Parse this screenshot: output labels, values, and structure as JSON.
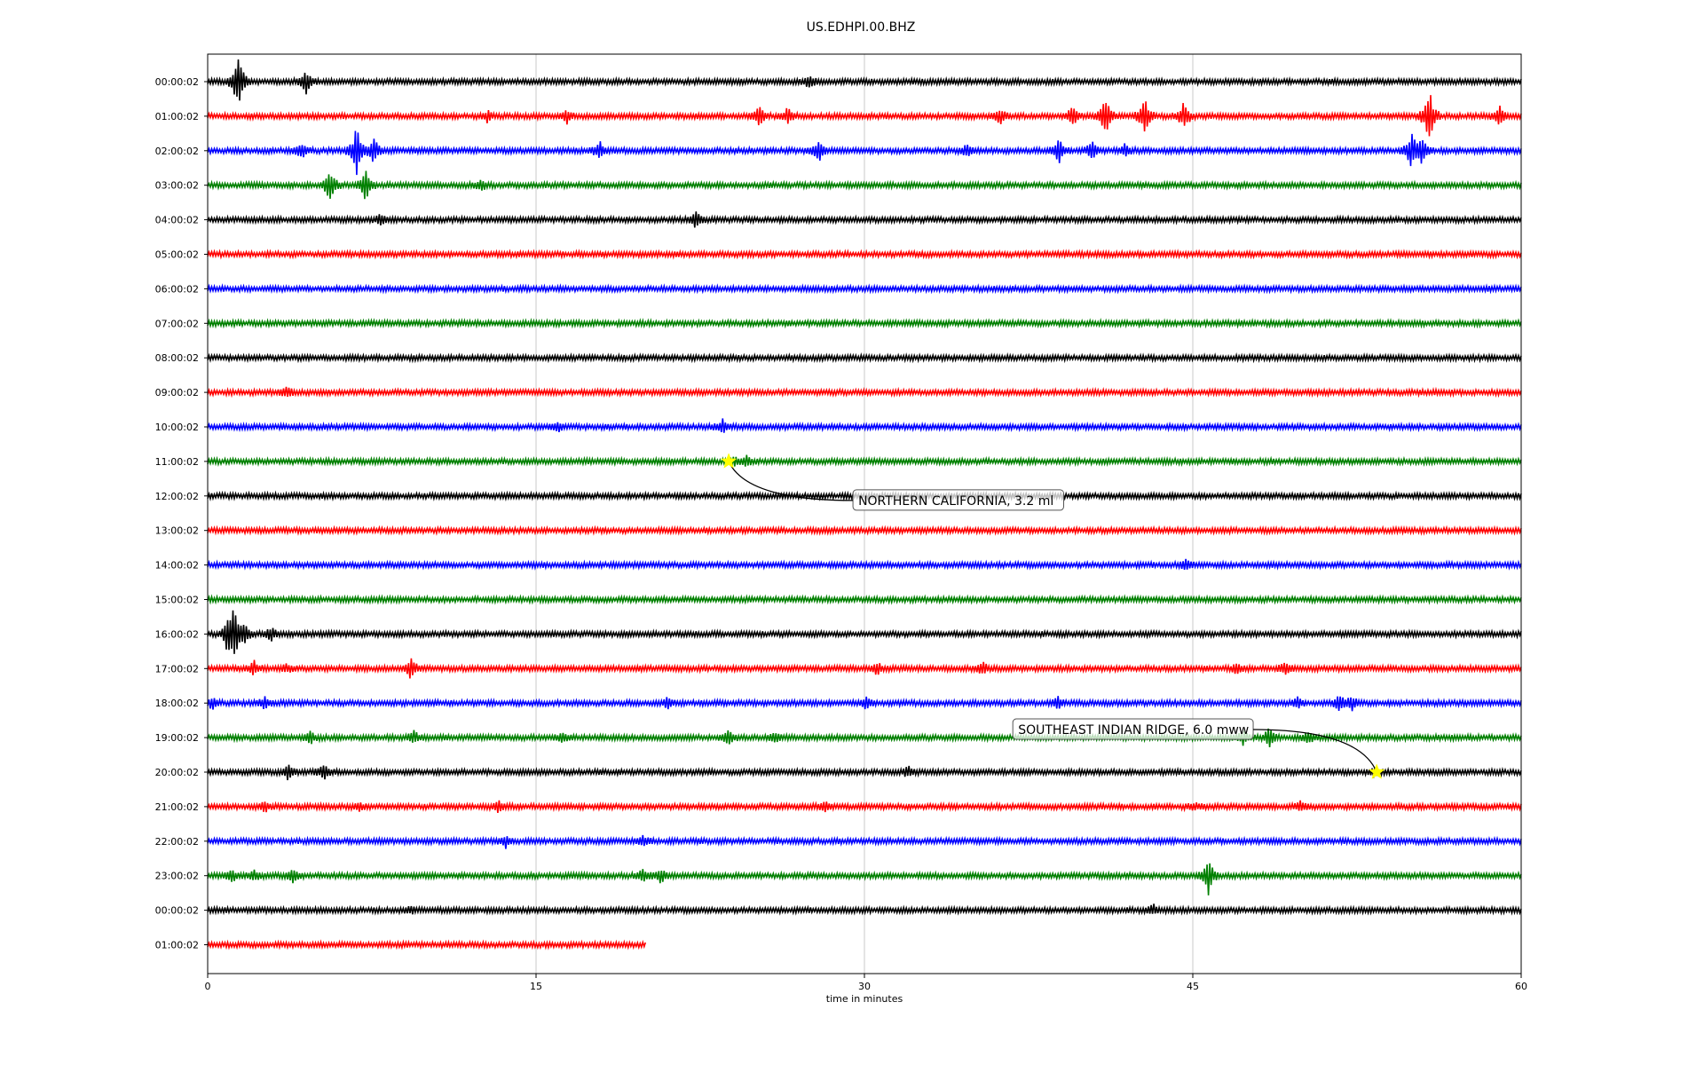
{
  "chart_data": {
    "type": "line",
    "title": "US.EDHPI.00.BHZ",
    "xlabel": "time in minutes",
    "ylabel": "",
    "xlim": [
      0,
      60
    ],
    "x_ticks": [
      "0",
      "15",
      "30",
      "45",
      "60"
    ],
    "x_tick_values": [
      0,
      15,
      30,
      45,
      60
    ],
    "grid": "vertical",
    "colors": [
      "#000000",
      "#ff0000",
      "#0000ff",
      "#008000"
    ],
    "rows": [
      {
        "label": "00:00:02",
        "color": "#000000",
        "end_minute": 60,
        "events": [
          [
            1.4,
            3.4
          ],
          [
            4.5,
            1.2
          ],
          [
            27.5,
            0.8
          ]
        ]
      },
      {
        "label": "01:00:02",
        "color": "#ff0000",
        "end_minute": 60,
        "events": [
          [
            12.8,
            0.6
          ],
          [
            16.4,
            0.7
          ],
          [
            25.2,
            1.2
          ],
          [
            26.5,
            0.9
          ],
          [
            36.2,
            0.9
          ],
          [
            39.5,
            1.0
          ],
          [
            41.0,
            2.3
          ],
          [
            42.8,
            2.4
          ],
          [
            44.6,
            1.6
          ],
          [
            55.8,
            3.4
          ],
          [
            59.0,
            1.0
          ]
        ]
      },
      {
        "label": "02:00:02",
        "color": "#0000ff",
        "end_minute": 60,
        "events": [
          [
            4.3,
            0.8
          ],
          [
            6.8,
            2.8
          ],
          [
            7.6,
            1.4
          ],
          [
            17.9,
            0.9
          ],
          [
            27.9,
            1.1
          ],
          [
            34.7,
            0.6
          ],
          [
            38.9,
            1.3
          ],
          [
            40.4,
            1.0
          ],
          [
            41.9,
            0.7
          ],
          [
            55.0,
            2.1
          ],
          [
            55.5,
            1.4
          ]
        ]
      },
      {
        "label": "03:00:02",
        "color": "#008000",
        "end_minute": 60,
        "events": [
          [
            5.6,
            1.9
          ],
          [
            7.2,
            1.7
          ],
          [
            12.5,
            0.5
          ]
        ]
      },
      {
        "label": "04:00:02",
        "color": "#000000",
        "end_minute": 60,
        "events": [
          [
            7.9,
            0.5
          ],
          [
            22.3,
            0.8
          ]
        ]
      },
      {
        "label": "05:00:02",
        "color": "#ff0000",
        "end_minute": 60,
        "events": []
      },
      {
        "label": "06:00:02",
        "color": "#0000ff",
        "end_minute": 60,
        "events": []
      },
      {
        "label": "07:00:02",
        "color": "#008000",
        "end_minute": 60,
        "events": []
      },
      {
        "label": "08:00:02",
        "color": "#000000",
        "end_minute": 60,
        "events": []
      },
      {
        "label": "09:00:02",
        "color": "#ff0000",
        "end_minute": 60,
        "events": [
          [
            3.6,
            0.5
          ]
        ]
      },
      {
        "label": "10:00:02",
        "color": "#0000ff",
        "end_minute": 60,
        "events": [
          [
            16.0,
            0.4
          ],
          [
            23.5,
            0.8
          ]
        ]
      },
      {
        "label": "11:00:02",
        "color": "#008000",
        "end_minute": 60,
        "events": [
          [
            24.0,
            0.5
          ],
          [
            24.6,
            0.6
          ]
        ]
      },
      {
        "label": "12:00:02",
        "color": "#000000",
        "end_minute": 60,
        "events": []
      },
      {
        "label": "13:00:02",
        "color": "#ff0000",
        "end_minute": 60,
        "events": []
      },
      {
        "label": "14:00:02",
        "color": "#0000ff",
        "end_minute": 60,
        "events": [
          [
            44.7,
            0.5
          ]
        ]
      },
      {
        "label": "15:00:02",
        "color": "#008000",
        "end_minute": 60,
        "events": []
      },
      {
        "label": "16:00:02",
        "color": "#000000",
        "end_minute": 60,
        "events": [
          [
            0.9,
            1.3
          ],
          [
            1.2,
            3.3
          ],
          [
            1.7,
            1.1
          ],
          [
            2.9,
            0.8
          ]
        ]
      },
      {
        "label": "17:00:02",
        "color": "#ff0000",
        "end_minute": 60,
        "events": [
          [
            2.1,
            0.8
          ],
          [
            3.6,
            0.5
          ],
          [
            9.3,
            1.1
          ],
          [
            30.6,
            0.6
          ],
          [
            35.4,
            0.6
          ],
          [
            47.0,
            0.5
          ],
          [
            49.2,
            0.6
          ]
        ]
      },
      {
        "label": "18:00:02",
        "color": "#0000ff",
        "end_minute": 60,
        "events": [
          [
            0.2,
            0.6
          ],
          [
            2.6,
            0.5
          ],
          [
            21.0,
            0.5
          ],
          [
            30.1,
            0.6
          ],
          [
            38.8,
            0.6
          ],
          [
            49.8,
            0.5
          ],
          [
            51.7,
            0.9
          ],
          [
            52.3,
            0.7
          ]
        ]
      },
      {
        "label": "19:00:02",
        "color": "#008000",
        "end_minute": 60,
        "events": [
          [
            4.7,
            0.6
          ],
          [
            9.4,
            0.7
          ],
          [
            16.2,
            0.5
          ],
          [
            23.8,
            0.7
          ],
          [
            25.9,
            0.5
          ],
          [
            47.3,
            0.9
          ],
          [
            48.5,
            1.0
          ],
          [
            50.3,
            0.6
          ]
        ]
      },
      {
        "label": "20:00:02",
        "color": "#000000",
        "end_minute": 60,
        "events": [
          [
            3.7,
            0.8
          ],
          [
            5.3,
            0.8
          ],
          [
            32.0,
            0.5
          ],
          [
            53.3,
            0.5
          ]
        ]
      },
      {
        "label": "21:00:02",
        "color": "#ff0000",
        "end_minute": 60,
        "events": [
          [
            2.6,
            0.5
          ],
          [
            6.9,
            0.4
          ],
          [
            13.3,
            0.5
          ],
          [
            28.2,
            0.5
          ],
          [
            45.1,
            0.4
          ],
          [
            49.9,
            0.5
          ]
        ]
      },
      {
        "label": "22:00:02",
        "color": "#0000ff",
        "end_minute": 60,
        "events": [
          [
            13.6,
            0.6
          ],
          [
            19.9,
            0.6
          ]
        ]
      },
      {
        "label": "23:00:02",
        "color": "#008000",
        "end_minute": 60,
        "events": [
          [
            1.1,
            0.7
          ],
          [
            2.1,
            0.6
          ],
          [
            3.9,
            0.8
          ],
          [
            19.9,
            0.7
          ],
          [
            20.7,
            0.7
          ],
          [
            45.7,
            2.1
          ]
        ]
      },
      {
        "label": "00:00:02",
        "color": "#000000",
        "end_minute": 60,
        "events": [
          [
            9.3,
            0.4
          ],
          [
            43.2,
            0.5
          ]
        ]
      },
      {
        "label": "01:00:02",
        "color": "#ff0000",
        "end_minute": 20,
        "events": []
      }
    ],
    "annotations": [
      {
        "text": "NORTHERN CALIFORNIA, 3.2 ml",
        "row": 11,
        "minute": 23.8,
        "marker": "star",
        "marker_color": "#ffff00"
      },
      {
        "text": "SOUTHEAST INDIAN RIDGE, 6.0 mww",
        "row": 20,
        "minute": 53.4,
        "marker": "star",
        "marker_color": "#ffff00"
      }
    ]
  }
}
